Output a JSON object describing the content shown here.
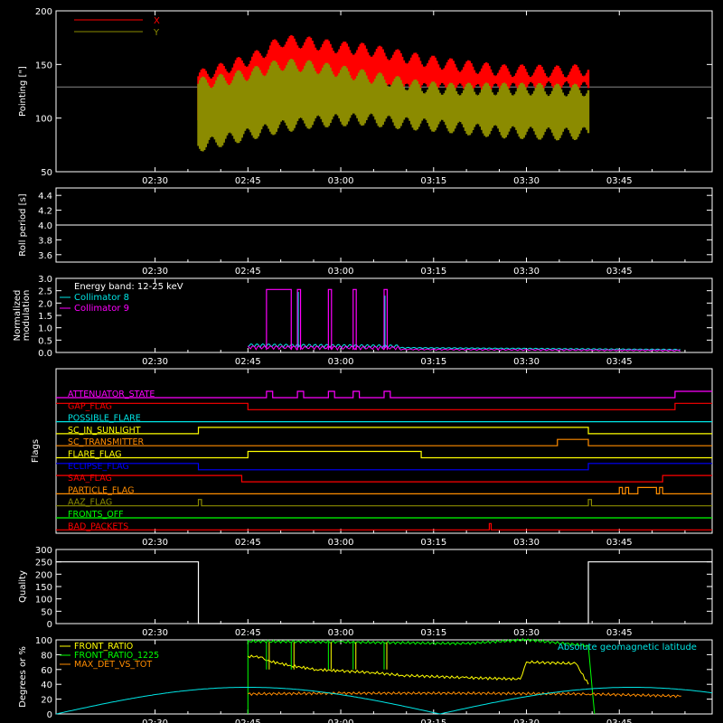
{
  "colors": {
    "background": "#000000",
    "axes": "#ffffff",
    "red": "#ff0000",
    "olive": "#8b8b00",
    "cyan": "#00e5e5",
    "magenta": "#ff00ff",
    "yellow": "#ffff00",
    "green": "#00ff00",
    "orange": "#ff8c00",
    "blue": "#0000ff",
    "white": "#ffffff"
  },
  "time_ticks": [
    "02:30",
    "02:45",
    "03:00",
    "03:15",
    "03:30",
    "03:45"
  ],
  "chart_data": [
    {
      "type": "area",
      "panel": "pointing",
      "ylabel": "Pointing [\"]",
      "ylim": [
        50,
        200
      ],
      "yticks": [
        "50",
        "100",
        "150",
        "200"
      ],
      "grid": false,
      "legend_position": "top-left",
      "reference_value": 129,
      "series": [
        {
          "name": "X",
          "color": "red",
          "start": "02:37",
          "end": "03:40",
          "low": [
            92,
            92,
            96,
            101,
            110,
            112,
            118,
            120,
            121,
            121,
            120,
            121,
            122,
            123,
            122
          ],
          "high": [
            145,
            153,
            162,
            178,
            176,
            172,
            170,
            165,
            160,
            156,
            153,
            150,
            150,
            149,
            151
          ]
        },
        {
          "name": "Y",
          "color": "olive",
          "start": "02:37",
          "end": "03:40",
          "low": [
            68,
            74,
            80,
            86,
            90,
            92,
            93,
            90,
            88,
            86,
            83,
            81,
            80,
            79,
            80
          ],
          "high": [
            138,
            142,
            148,
            156,
            154,
            150,
            145,
            140,
            135,
            133,
            133,
            133,
            133,
            132,
            132
          ]
        }
      ]
    },
    {
      "type": "line",
      "panel": "roll-period",
      "ylabel": "Roll period [s]",
      "ylim": [
        3.5,
        4.5
      ],
      "yticks": [
        "3.6",
        "3.8",
        "4.0",
        "4.2",
        "4.4"
      ],
      "grid": false,
      "series": [
        {
          "color": "white",
          "x": [
            "02:14",
            "04:00"
          ],
          "y": [
            4.0,
            4.0
          ]
        }
      ]
    },
    {
      "type": "line",
      "panel": "modulation",
      "ylabel": "Normalized modulation",
      "ylim": [
        0,
        3.0
      ],
      "yticks": [
        "0.0",
        "0.5",
        "1.0",
        "1.5",
        "2.0",
        "2.5",
        "3.0"
      ],
      "grid": false,
      "legend_position": "top-left",
      "legend_title": "Energy band: 12-25 keV",
      "spikes": [
        {
          "start": "02:48",
          "end": "02:52",
          "value": 2.55
        },
        {
          "start": "02:53",
          "end": "02:53.5",
          "value": 2.55
        },
        {
          "start": "02:58",
          "end": "02:58.5",
          "value": 2.55
        },
        {
          "start": "03:02",
          "end": "03:02.5",
          "value": 2.55
        },
        {
          "start": "03:07",
          "end": "03:07.5",
          "value": 2.55
        }
      ],
      "series": [
        {
          "name": "Collimator 8",
          "color": "cyan",
          "start": "02:45",
          "end": "03:55",
          "baseline": 0.2
        },
        {
          "name": "Collimator 9",
          "color": "magenta",
          "start": "02:45",
          "end": "03:55",
          "baseline": 0.12
        }
      ]
    },
    {
      "type": "line",
      "panel": "flags",
      "ylabel": "Flags",
      "flags": [
        {
          "name": "ATTENUATOR_STATE",
          "color": "magenta",
          "base": 0,
          "pulses": [
            [
              "02:48",
              "02:49"
            ],
            [
              "02:53",
              "02:54"
            ],
            [
              "02:58",
              "02:59"
            ],
            [
              "03:02",
              "03:03"
            ],
            [
              "03:07",
              "03:08"
            ]
          ],
          "high_after": "03:54"
        },
        {
          "name": "GAP_FLAG",
          "color": "red",
          "base": 1,
          "low": [
            "02:45",
            "03:54"
          ]
        },
        {
          "name": "POSSIBLE_FLARE",
          "color": "cyan",
          "base": 0
        },
        {
          "name": "SC_IN_SUNLIGHT",
          "color": "yellow",
          "base": 0,
          "high": [
            [
              "02:37",
              "03:40"
            ]
          ]
        },
        {
          "name": "SC_TRANSMITTER",
          "color": "orange",
          "base": 0,
          "high": [
            [
              "03:35",
              "03:40"
            ]
          ]
        },
        {
          "name": "FLARE_FLAG",
          "color": "yellow",
          "base": 0,
          "high": [
            [
              "02:45",
              "03:13"
            ]
          ]
        },
        {
          "name": "ECLIPSE_FLAG",
          "color": "blue",
          "base": 1,
          "low": [
            "02:37",
            "03:40"
          ]
        },
        {
          "name": "SAA_FLAG",
          "color": "red",
          "base": 1,
          "low": [
            "02:44",
            "03:52"
          ]
        },
        {
          "name": "PARTICLE_FLAG",
          "color": "orange",
          "base": 0,
          "pulses": [
            [
              "03:45",
              "03:45.5"
            ],
            [
              "03:46",
              "03:46.5"
            ],
            [
              "03:48",
              "03:51"
            ],
            [
              "03:51.5",
              "03:52"
            ]
          ]
        },
        {
          "name": "AAZ_FLAG",
          "color": "olive",
          "base": 0,
          "pulses": [
            [
              "02:37",
              "02:37.5"
            ],
            [
              "03:40",
              "03:40.5"
            ]
          ]
        },
        {
          "name": "FRONTS_OFF",
          "color": "green",
          "base": 0
        },
        {
          "name": "BAD_PACKETS",
          "color": "red",
          "base": 0,
          "pulses": [
            [
              "03:24",
              "03:24.3"
            ]
          ]
        }
      ]
    },
    {
      "type": "line",
      "panel": "quality",
      "ylabel": "Quality",
      "ylim": [
        0,
        300
      ],
      "yticks": [
        "0",
        "50",
        "100",
        "150",
        "200",
        "250",
        "300"
      ],
      "grid": false,
      "series": [
        {
          "color": "white",
          "x": [
            "02:14",
            "02:37",
            "02:37",
            "03:40",
            "03:40",
            "04:00"
          ],
          "y": [
            250,
            250,
            0,
            0,
            250,
            250
          ]
        }
      ]
    },
    {
      "type": "line",
      "panel": "front-ratio",
      "ylabel": "Degrees or %",
      "ylim": [
        0,
        100
      ],
      "yticks": [
        "0",
        "20",
        "40",
        "60",
        "80",
        "100"
      ],
      "grid": false,
      "legend_position": "top-left",
      "series": [
        {
          "name": "FRONT_RATIO",
          "color": "yellow",
          "x": [
            "02:45",
            "02:47",
            "02:48",
            "02:52",
            "02:56",
            "03:00",
            "03:05",
            "03:10",
            "03:20",
            "03:29",
            "03:30",
            "03:38",
            "03:40"
          ],
          "y": [
            78,
            77,
            72,
            65,
            60,
            58,
            56,
            52,
            49,
            47,
            70,
            68,
            40
          ]
        },
        {
          "name": "FRONT_RATIO_1225",
          "color": "green",
          "x": [
            "02:45",
            "03:00",
            "03:20",
            "03:30",
            "03:40",
            "03:41"
          ],
          "y": [
            98,
            97,
            95,
            100,
            92,
            0
          ]
        },
        {
          "name": "MAX_DET_VS_TOT",
          "color": "orange",
          "x": [
            "02:45",
            "03:00",
            "03:20",
            "03:40",
            "03:55"
          ],
          "y": [
            27,
            28,
            28,
            27,
            24
          ]
        },
        {
          "name": "Absolute geomagnetic latitude",
          "color": "cyan",
          "x": [
            "02:14",
            "02:45",
            "03:16",
            "03:47",
            "04:00"
          ],
          "y": [
            0,
            36,
            0,
            36,
            20
          ]
        }
      ]
    }
  ]
}
